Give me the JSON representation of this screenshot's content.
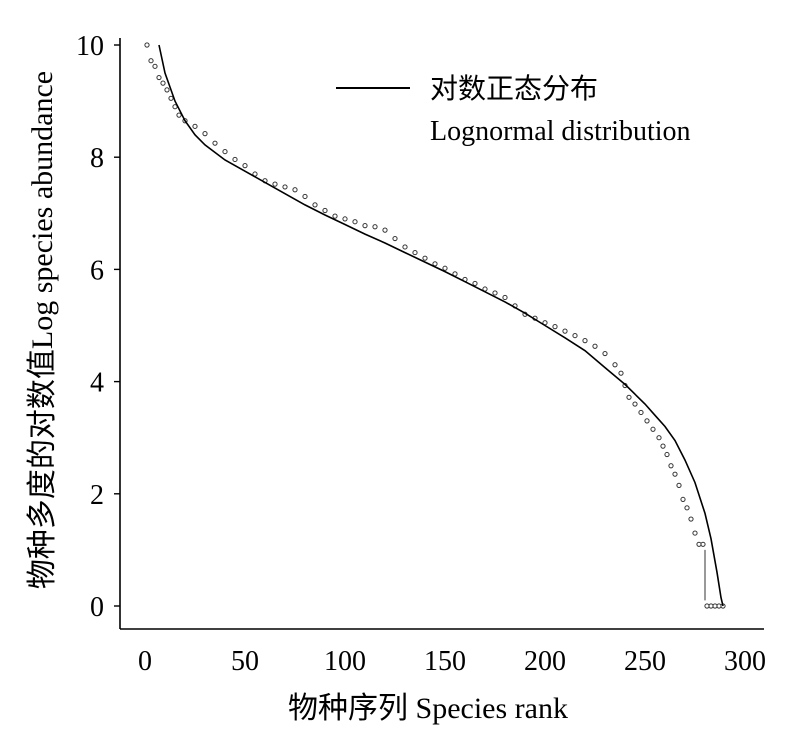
{
  "chart_data": {
    "type": "scatter",
    "xlabel": "物种序列 Species rank",
    "ylabel": "物种多度的对数值Log species abundance",
    "xlim": [
      0,
      300
    ],
    "ylim": [
      0,
      10
    ],
    "x_ticks": [
      "0",
      "50",
      "100",
      "150",
      "200",
      "250",
      "300"
    ],
    "y_ticks": [
      "0",
      "2",
      "4",
      "6",
      "8",
      "10"
    ],
    "grid": false,
    "legend": {
      "position": "top-right",
      "entries": [
        {
          "label_zh": "对数正态分布",
          "label_en": "Lognormal distribution",
          "style": "solid-line"
        }
      ]
    },
    "series": [
      {
        "style": "open-circle-markers",
        "points": [
          [
            1,
            10.0
          ],
          [
            3,
            9.72
          ],
          [
            5,
            9.62
          ],
          [
            7,
            9.42
          ],
          [
            9,
            9.32
          ],
          [
            11,
            9.2
          ],
          [
            13,
            9.05
          ],
          [
            15,
            8.9
          ],
          [
            17,
            8.75
          ],
          [
            20,
            8.65
          ],
          [
            25,
            8.55
          ],
          [
            30,
            8.42
          ],
          [
            35,
            8.25
          ],
          [
            40,
            8.1
          ],
          [
            45,
            7.96
          ],
          [
            50,
            7.85
          ],
          [
            55,
            7.7
          ],
          [
            60,
            7.58
          ],
          [
            65,
            7.52
          ],
          [
            70,
            7.47
          ],
          [
            75,
            7.42
          ],
          [
            80,
            7.3
          ],
          [
            85,
            7.15
          ],
          [
            90,
            7.05
          ],
          [
            95,
            6.95
          ],
          [
            100,
            6.9
          ],
          [
            105,
            6.85
          ],
          [
            110,
            6.78
          ],
          [
            115,
            6.76
          ],
          [
            120,
            6.7
          ],
          [
            125,
            6.55
          ],
          [
            130,
            6.4
          ],
          [
            135,
            6.3
          ],
          [
            140,
            6.2
          ],
          [
            145,
            6.1
          ],
          [
            150,
            6.02
          ],
          [
            155,
            5.92
          ],
          [
            160,
            5.82
          ],
          [
            165,
            5.75
          ],
          [
            170,
            5.65
          ],
          [
            175,
            5.58
          ],
          [
            180,
            5.5
          ],
          [
            185,
            5.35
          ],
          [
            190,
            5.2
          ],
          [
            195,
            5.13
          ],
          [
            200,
            5.05
          ],
          [
            205,
            4.98
          ],
          [
            210,
            4.9
          ],
          [
            215,
            4.82
          ],
          [
            220,
            4.73
          ],
          [
            225,
            4.63
          ],
          [
            230,
            4.5
          ],
          [
            235,
            4.3
          ],
          [
            238,
            4.15
          ],
          [
            240,
            3.93
          ],
          [
            242,
            3.72
          ],
          [
            245,
            3.6
          ],
          [
            248,
            3.45
          ],
          [
            251,
            3.3
          ],
          [
            254,
            3.15
          ],
          [
            257,
            3.0
          ],
          [
            259,
            2.85
          ],
          [
            261,
            2.7
          ],
          [
            263,
            2.5
          ],
          [
            265,
            2.35
          ],
          [
            267,
            2.15
          ],
          [
            269,
            1.9
          ],
          [
            271,
            1.75
          ],
          [
            273,
            1.55
          ],
          [
            275,
            1.3
          ],
          [
            277,
            1.1
          ],
          [
            279,
            1.1
          ],
          [
            281,
            0.0
          ],
          [
            283,
            0.0
          ],
          [
            285,
            0.0
          ],
          [
            287,
            0.0
          ],
          [
            289,
            0.0
          ]
        ]
      },
      {
        "name": "对数正态分布 Lognormal distribution",
        "style": "solid-line",
        "points": [
          [
            7,
            10.0
          ],
          [
            10,
            9.5
          ],
          [
            15,
            9.0
          ],
          [
            20,
            8.65
          ],
          [
            25,
            8.4
          ],
          [
            30,
            8.22
          ],
          [
            40,
            7.95
          ],
          [
            50,
            7.75
          ],
          [
            60,
            7.55
          ],
          [
            70,
            7.35
          ],
          [
            80,
            7.15
          ],
          [
            90,
            6.97
          ],
          [
            100,
            6.8
          ],
          [
            110,
            6.63
          ],
          [
            120,
            6.47
          ],
          [
            130,
            6.3
          ],
          [
            140,
            6.13
          ],
          [
            150,
            5.96
          ],
          [
            160,
            5.78
          ],
          [
            170,
            5.6
          ],
          [
            180,
            5.42
          ],
          [
            190,
            5.22
          ],
          [
            200,
            5.0
          ],
          [
            210,
            4.78
          ],
          [
            220,
            4.55
          ],
          [
            230,
            4.25
          ],
          [
            240,
            3.95
          ],
          [
            250,
            3.6
          ],
          [
            255,
            3.4
          ],
          [
            260,
            3.2
          ],
          [
            265,
            2.95
          ],
          [
            270,
            2.6
          ],
          [
            275,
            2.2
          ],
          [
            280,
            1.65
          ],
          [
            283,
            1.2
          ],
          [
            286,
            0.6
          ],
          [
            288,
            0.15
          ],
          [
            289,
            0.0
          ]
        ]
      }
    ]
  }
}
